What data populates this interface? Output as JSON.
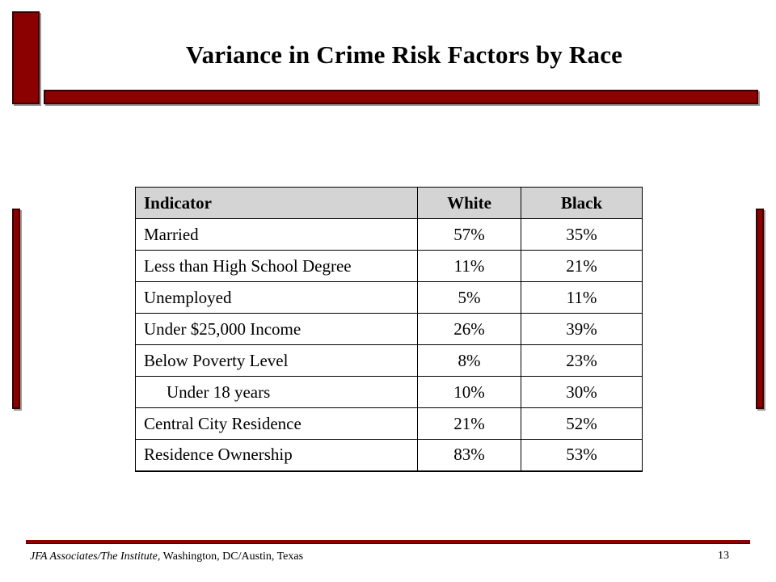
{
  "title": "Variance in Crime Risk Factors by Race",
  "table": {
    "headers": [
      "Indicator",
      "White",
      "Black"
    ],
    "rows": [
      [
        "Married",
        "57%",
        "35%"
      ],
      [
        "Less than High School Degree",
        "11%",
        "21%"
      ],
      [
        "Unemployed",
        "5%",
        "11%"
      ],
      [
        "Under $25,000 Income",
        "26%",
        "39%"
      ],
      [
        "Below Poverty Level",
        "8%",
        "23%"
      ],
      [
        "Under 18 years",
        "10%",
        "30%"
      ],
      [
        "Central City Residence",
        "21%",
        "52%"
      ],
      [
        "Residence Ownership",
        "83%",
        "53%"
      ]
    ]
  },
  "footer": {
    "source_italic": "JFA Associates/The Institute,",
    "source_rest": " Washington, DC/Austin, Texas",
    "page_number": "13"
  },
  "colors": {
    "accent_bar": "#8b0000",
    "header_fill": "#d4d4d4"
  }
}
